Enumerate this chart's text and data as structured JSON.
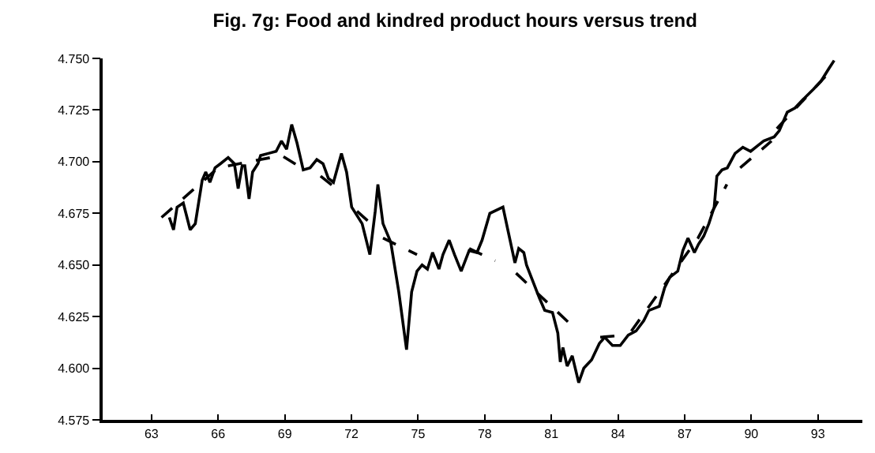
{
  "chart_data": {
    "type": "line",
    "title": "Fig. 7g: Food and kindred product hours versus trend",
    "xlim": [
      60.8,
      95
    ],
    "xticks": [
      63,
      66,
      69,
      72,
      75,
      78,
      81,
      84,
      87,
      90,
      93
    ],
    "ylim": [
      4.575,
      4.75
    ],
    "yticks": [
      {
        "value": 4.575,
        "label": "4.575"
      },
      {
        "value": 4.6,
        "label": "4.600"
      },
      {
        "value": 4.625,
        "label": "4.625"
      },
      {
        "value": 4.65,
        "label": "4.650"
      },
      {
        "value": 4.675,
        "label": "4.675"
      },
      {
        "value": 4.7,
        "label": "4.700"
      },
      {
        "value": 4.725,
        "label": "4.725"
      },
      {
        "value": 4.75,
        "label": "4.750"
      }
    ],
    "marker": "none",
    "series": [
      {
        "color": "#000000",
        "line_style": "solid",
        "x": [
          63.8,
          63.99,
          64.15,
          64.43,
          64.74,
          64.97,
          65.28,
          65.44,
          65.63,
          65.86,
          66.1,
          66.45,
          66.73,
          66.9,
          67.08,
          67.2,
          67.39,
          67.55,
          67.79,
          67.91,
          68.26,
          68.61,
          68.85,
          69.08,
          69.31,
          69.55,
          69.83,
          70.14,
          70.44,
          70.72,
          70.96,
          71.19,
          71.55,
          71.78,
          72.01,
          72.48,
          72.83,
          73.07,
          73.19,
          73.42,
          73.77,
          74.13,
          74.48,
          74.71,
          74.95,
          75.18,
          75.42,
          75.65,
          75.94,
          76.12,
          76.4,
          76.64,
          76.94,
          77.3,
          77.65,
          77.88,
          78.23,
          78.82,
          79.06,
          79.36,
          79.53,
          79.76,
          79.88,
          80.46,
          80.7,
          81.05,
          81.29,
          81.4,
          81.52,
          81.71,
          81.94,
          82.23,
          82.46,
          82.81,
          83.16,
          83.4,
          83.75,
          84.1,
          84.46,
          84.81,
          85.16,
          85.39,
          85.86,
          86.1,
          86.33,
          86.69,
          86.92,
          87.15,
          87.44,
          87.62,
          87.86,
          88.09,
          88.33,
          88.45,
          88.68,
          88.92,
          89.27,
          89.62,
          89.97,
          90.32,
          90.56,
          91.03,
          91.26,
          91.62,
          91.97,
          92.32,
          92.79,
          93.14,
          93.49,
          93.73
        ],
        "values": [
          4.673,
          4.667,
          4.678,
          4.68,
          4.667,
          4.67,
          4.691,
          4.695,
          4.69,
          4.697,
          4.699,
          4.702,
          4.699,
          4.687,
          4.698,
          4.698,
          4.682,
          4.695,
          4.699,
          4.703,
          4.704,
          4.705,
          4.71,
          4.706,
          4.718,
          4.709,
          4.696,
          4.697,
          4.701,
          4.699,
          4.692,
          4.69,
          4.704,
          4.695,
          4.678,
          4.67,
          4.655,
          4.676,
          4.689,
          4.67,
          4.661,
          4.637,
          4.609,
          4.637,
          4.647,
          4.65,
          4.648,
          4.656,
          4.648,
          4.655,
          4.662,
          4.655,
          4.647,
          4.657,
          4.656,
          4.662,
          4.675,
          4.678,
          4.666,
          4.651,
          4.658,
          4.656,
          4.65,
          4.634,
          4.628,
          4.627,
          4.617,
          4.603,
          4.61,
          4.601,
          4.606,
          4.593,
          4.6,
          4.604,
          4.612,
          4.615,
          4.611,
          4.611,
          4.616,
          4.618,
          4.623,
          4.628,
          4.63,
          4.639,
          4.644,
          4.647,
          4.657,
          4.663,
          4.656,
          4.66,
          4.664,
          4.67,
          4.678,
          4.693,
          4.696,
          4.697,
          4.704,
          4.707,
          4.705,
          4.708,
          4.71,
          4.712,
          4.715,
          4.724,
          4.726,
          4.73,
          4.735,
          4.739,
          4.745,
          4.749
        ]
      },
      {
        "color": "#000000",
        "line_style": "dashed",
        "x": [
          63.45,
          66.0,
          68.85,
          69.9,
          69.95,
          70.61,
          71.43,
          71.5,
          72.25,
          73.19,
          73.3,
          73.42,
          74.95,
          75.0,
          77.3,
          78.47,
          78.5,
          79.41,
          81.99,
          82.0,
          83.2,
          84.3,
          84.4,
          84.6,
          87.6,
          88.9,
          89.0,
          89.5,
          90.91,
          91.0,
          91.15,
          93.49
        ],
        "values": [
          4.673,
          4.697,
          4.703,
          4.696,
          null,
          4.693,
          4.686,
          null,
          4.676,
          4.667,
          null,
          4.663,
          4.655,
          null,
          4.658,
          4.652,
          null,
          4.646,
          4.62,
          null,
          4.615,
          4.616,
          null,
          4.618,
          4.663,
          4.689,
          null,
          4.697,
          4.71,
          null,
          4.716,
          4.743
        ]
      }
    ]
  }
}
